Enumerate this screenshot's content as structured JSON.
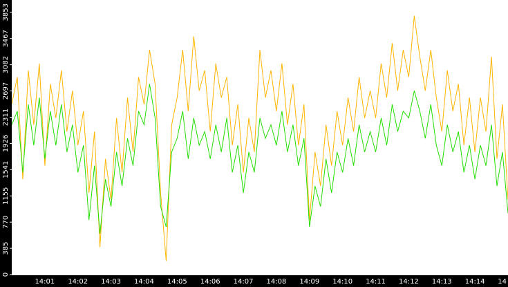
{
  "chart_data": {
    "type": "line",
    "categories": [
      null,
      null,
      null,
      null,
      null,
      null,
      "14:01",
      null,
      null,
      null,
      null,
      null,
      "14:02",
      null,
      null,
      null,
      null,
      null,
      "14:03",
      null,
      null,
      null,
      null,
      null,
      "14:04",
      null,
      null,
      null,
      null,
      null,
      "14:05",
      null,
      null,
      null,
      null,
      null,
      "14:06",
      null,
      null,
      null,
      null,
      null,
      "14:07",
      null,
      null,
      null,
      null,
      null,
      "14:08",
      null,
      null,
      null,
      null,
      null,
      "14:09",
      null,
      null,
      null,
      null,
      null,
      "14:10",
      null,
      null,
      null,
      null,
      null,
      "14:11",
      null,
      null,
      null,
      null,
      null,
      "14:12",
      null,
      null,
      null,
      null,
      null,
      "14:13",
      null,
      null,
      null,
      null,
      null,
      "14:14",
      null,
      null,
      null,
      null,
      null,
      "14"
    ],
    "series": [
      {
        "color": "#ffb400",
        "values": [
          2500,
          2900,
          1400,
          3000,
          2200,
          3100,
          1600,
          2800,
          2300,
          3000,
          2100,
          2700,
          1900,
          2400,
          1200,
          2100,
          400,
          1700,
          1100,
          2300,
          1500,
          2600,
          1800,
          2900,
          2500,
          3300,
          2800,
          1200,
          200,
          2200,
          2600,
          3300,
          2400,
          3500,
          2700,
          3000,
          2100,
          3100,
          2600,
          2900,
          1900,
          2500,
          1500,
          2300,
          1800,
          3300,
          2600,
          3000,
          2400,
          3100,
          2200,
          2800,
          1900,
          2500,
          800,
          1800,
          1300,
          2200,
          1600,
          2400,
          1900,
          2600,
          2100,
          2900,
          2300,
          2700,
          2300,
          3100,
          2600,
          3400,
          2700,
          3300,
          2900,
          3800,
          3200,
          2700,
          3300,
          2600,
          2100,
          3000,
          2400,
          2800,
          1900,
          2600,
          1800,
          2600,
          2100,
          3200,
          1700,
          2500,
          1100
        ]
      },
      {
        "color": "#22dd00",
        "values": [
          2200,
          2400,
          1500,
          2500,
          1900,
          2600,
          1700,
          2400,
          1900,
          2500,
          1800,
          2200,
          1500,
          1900,
          800,
          1600,
          600,
          1400,
          1000,
          1800,
          1300,
          2000,
          1600,
          2400,
          2200,
          2800,
          2300,
          1000,
          700,
          1800,
          2000,
          2400,
          1700,
          2300,
          1900,
          2100,
          1700,
          2200,
          1800,
          2300,
          1500,
          1900,
          1200,
          1800,
          1500,
          2300,
          2000,
          2200,
          1900,
          2400,
          1800,
          2200,
          1600,
          2000,
          700,
          1300,
          1000,
          1700,
          1200,
          1800,
          1500,
          2000,
          1600,
          2200,
          1800,
          2100,
          1800,
          2300,
          1900,
          2500,
          2100,
          2400,
          2300,
          2700,
          2400,
          2000,
          2500,
          1900,
          1600,
          2200,
          1800,
          2100,
          1500,
          1900,
          1400,
          1900,
          1600,
          2200,
          1300,
          1800,
          900
        ]
      }
    ],
    "ylim": [
      0,
      4033
    ],
    "yticks": [
      0,
      385,
      770,
      1155,
      1541,
      1926,
      2311,
      2697,
      3082,
      3467,
      3853
    ]
  }
}
